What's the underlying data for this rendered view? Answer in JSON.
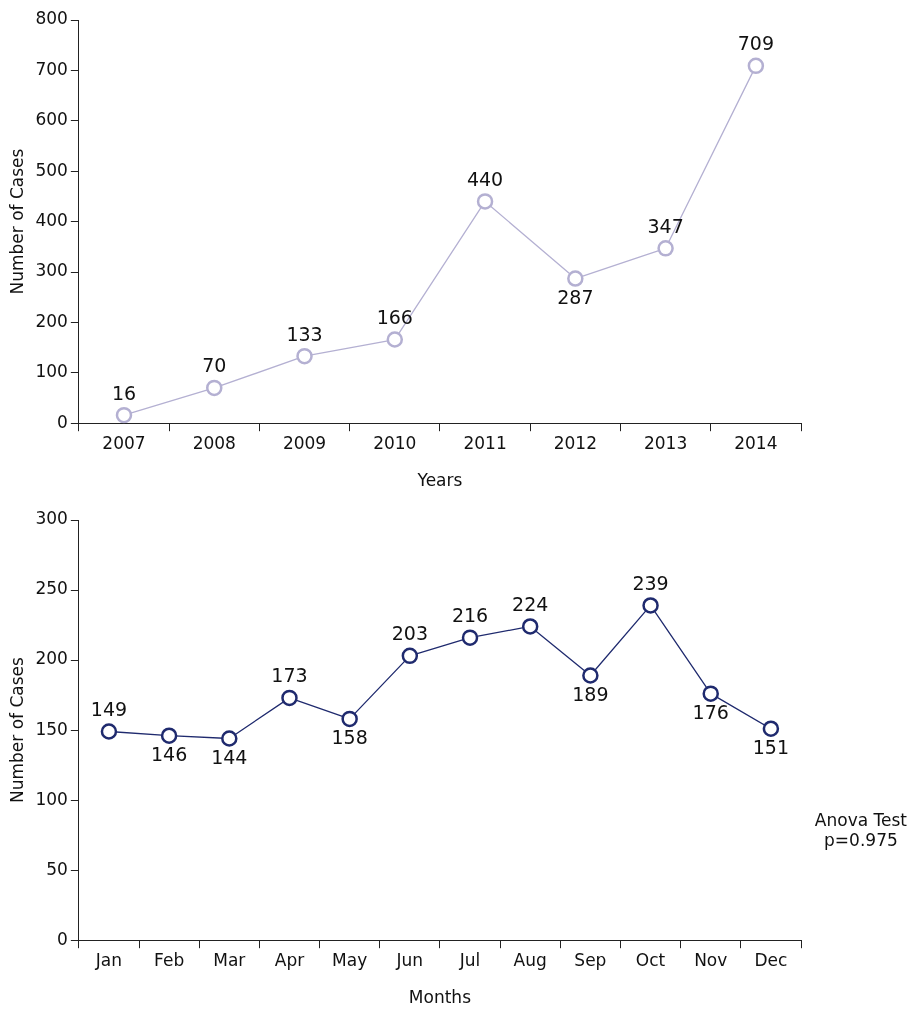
{
  "chart_data": [
    {
      "type": "line",
      "xlabel": "Years",
      "ylabel": "Number of Cases",
      "categories": [
        "2007",
        "2008",
        "2009",
        "2010",
        "2011",
        "2012",
        "2013",
        "2014"
      ],
      "series": [
        {
          "color": "#b4b0d2",
          "values": [
            16,
            70,
            133,
            166,
            440,
            287,
            347,
            709
          ]
        }
      ],
      "ylim": [
        0,
        800
      ],
      "yticks": [
        0,
        100,
        200,
        300,
        400,
        500,
        600,
        700,
        800
      ],
      "grid": false,
      "legend": false,
      "marker": "circle",
      "line_style": "solid",
      "data_labels": true
    },
    {
      "type": "line",
      "xlabel": "Months",
      "ylabel": "Number of Cases",
      "categories": [
        "Jan",
        "Feb",
        "Mar",
        "Apr",
        "May",
        "Jun",
        "Jul",
        "Aug",
        "Sep",
        "Oct",
        "Nov",
        "Dec"
      ],
      "series": [
        {
          "color": "#1f2a6e",
          "values": [
            149,
            146,
            144,
            173,
            158,
            203,
            216,
            224,
            189,
            239,
            176,
            151
          ]
        }
      ],
      "ylim": [
        0,
        300
      ],
      "yticks": [
        0,
        50,
        100,
        150,
        200,
        250,
        300
      ],
      "grid": false,
      "legend": false,
      "marker": "circle",
      "line_style": "solid",
      "data_labels": true,
      "annotations": [
        "Anova Test\np=0.975"
      ]
    }
  ]
}
